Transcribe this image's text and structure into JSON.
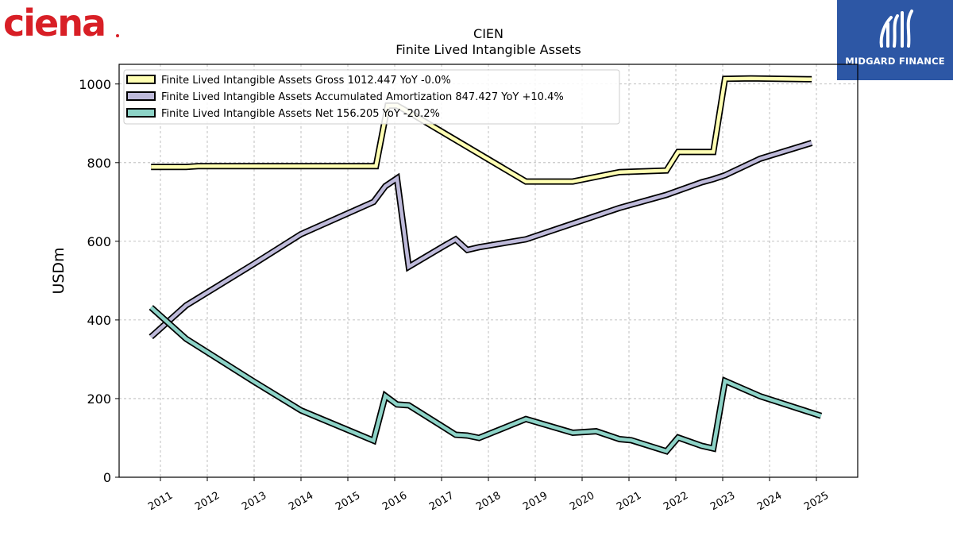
{
  "branding": {
    "company_logo_text": "ciena",
    "publisher_name": "MIDGARD FINANCE"
  },
  "colors": {
    "ciena_red": "#d81f26",
    "publisher_blue": "#2d57a5",
    "gross": "#ffffb3",
    "amortization": "#bebada",
    "net": "#8dd3c7"
  },
  "chart_data": {
    "type": "line",
    "title": "CIEN",
    "subtitle": "Finite Lived Intangible Assets",
    "xlabel": "",
    "ylabel": "USDm",
    "ylim": [
      0,
      1050
    ],
    "yticks": [
      "0",
      "200",
      "400",
      "600",
      "800",
      "1000"
    ],
    "xticks": [
      "2011",
      "2012",
      "2013",
      "2014",
      "2015",
      "2016",
      "2017",
      "2018",
      "2019",
      "2020",
      "2021",
      "2022",
      "2023",
      "2024",
      "2025"
    ],
    "grid": true,
    "legend_position": "top-left",
    "series": [
      {
        "name": "Finite Lived Intangible Assets Gross",
        "legend": "Finite Lived Intangible Assets Gross  1012.447 YoY -0.0%",
        "color": "#ffffb3",
        "points": [
          [
            "2010.80",
            789
          ],
          [
            "2011.55",
            789
          ],
          [
            "2011.80",
            791
          ],
          [
            "2015.60",
            791
          ],
          [
            "2015.85",
            945
          ],
          [
            "2016.05",
            945
          ],
          [
            "2016.35",
            925
          ],
          [
            "2018.80",
            752
          ],
          [
            "2019.80",
            752
          ],
          [
            "2020.80",
            776
          ],
          [
            "2021.80",
            780
          ],
          [
            "2022.05",
            827
          ],
          [
            "2022.80",
            827
          ],
          [
            "2023.05",
            1013
          ],
          [
            "2023.60",
            1014
          ],
          [
            "2024.90",
            1012
          ]
        ]
      },
      {
        "name": "Finite Lived Intangible Assets Accumulated Amortization",
        "legend": "Finite Lived Intangible Assets Accumulated Amortization  847.427 YoY +10.4%",
        "color": "#bebada",
        "points": [
          [
            "2010.80",
            357
          ],
          [
            "2011.55",
            437
          ],
          [
            "2013.00",
            543
          ],
          [
            "2014.00",
            618
          ],
          [
            "2015.55",
            700
          ],
          [
            "2015.80",
            740
          ],
          [
            "2016.05",
            760
          ],
          [
            "2016.30",
            535
          ],
          [
            "2017.05",
            588
          ],
          [
            "2017.30",
            605
          ],
          [
            "2017.55",
            578
          ],
          [
            "2017.80",
            585
          ],
          [
            "2018.80",
            605
          ],
          [
            "2019.80",
            645
          ],
          [
            "2020.80",
            685
          ],
          [
            "2021.80",
            718
          ],
          [
            "2022.55",
            750
          ],
          [
            "2022.80",
            758
          ],
          [
            "2023.05",
            768
          ],
          [
            "2023.80",
            810
          ],
          [
            "2024.90",
            850
          ]
        ]
      },
      {
        "name": "Finite Lived Intangible Assets Net",
        "legend": "Finite Lived Intangible Assets Net  156.205 YoY -20.2%",
        "color": "#8dd3c7",
        "points": [
          [
            "2010.80",
            432
          ],
          [
            "2011.55",
            352
          ],
          [
            "2013.00",
            243
          ],
          [
            "2014.00",
            170
          ],
          [
            "2015.55",
            93
          ],
          [
            "2015.80",
            207
          ],
          [
            "2016.05",
            185
          ],
          [
            "2016.30",
            183
          ],
          [
            "2017.05",
            127
          ],
          [
            "2017.30",
            108
          ],
          [
            "2017.55",
            106
          ],
          [
            "2017.80",
            100
          ],
          [
            "2018.80",
            148
          ],
          [
            "2019.80",
            113
          ],
          [
            "2020.30",
            117
          ],
          [
            "2020.80",
            97
          ],
          [
            "2021.05",
            94
          ],
          [
            "2021.80",
            66
          ],
          [
            "2022.05",
            101
          ],
          [
            "2022.55",
            80
          ],
          [
            "2022.80",
            73
          ],
          [
            "2023.05",
            245
          ],
          [
            "2023.80",
            206
          ],
          [
            "2025.10",
            156
          ]
        ]
      }
    ]
  }
}
